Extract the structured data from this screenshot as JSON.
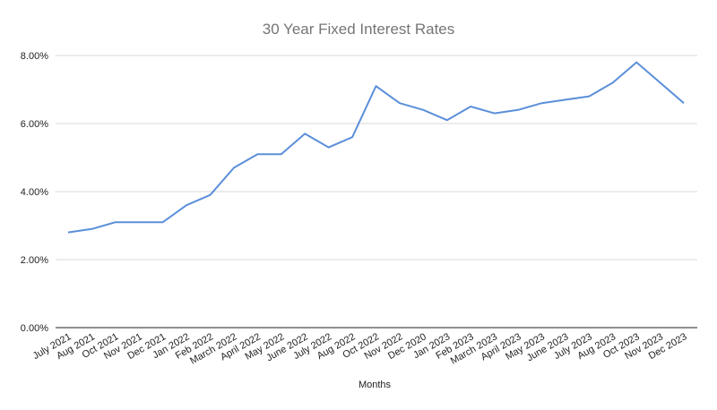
{
  "chart_data": {
    "type": "line",
    "title": "30 Year Fixed Interest Rates",
    "xlabel": "Months",
    "ylabel": "",
    "ylim": [
      0,
      8
    ],
    "yticks": [
      "0.00%",
      "2.00%",
      "4.00%",
      "6.00%",
      "8.00%"
    ],
    "grid": true,
    "legend": "none",
    "categories": [
      "July 2021",
      "Aug 2021",
      "Oct 2021",
      "Nov 2021",
      "Dec 2021",
      "Jan 2022",
      "Feb 2022",
      "March 2022",
      "April 2022",
      "May 2022",
      "June 2022",
      "July 2022",
      "Aug 2022",
      "Oct 2022",
      "Nov 2022",
      "Dec 2020",
      "Jan 2023",
      "Feb 2023",
      "March 2023",
      "April 2023",
      "May 2023",
      "June 2023",
      "July 2023",
      "Aug 2023",
      "Oct 2023",
      "Nov 2023",
      "Dec 2023"
    ],
    "series": [
      {
        "values": [
          2.8,
          2.9,
          3.1,
          3.1,
          3.1,
          3.6,
          3.9,
          4.7,
          5.1,
          5.1,
          5.7,
          5.3,
          5.6,
          7.1,
          6.6,
          6.4,
          6.1,
          6.5,
          6.3,
          6.4,
          6.6,
          6.7,
          6.8,
          7.2,
          7.8,
          7.2,
          6.6
        ],
        "color": "#5b8fd9"
      }
    ],
    "colors": {
      "line": "#5b8fd9",
      "grid": "#d9d9d9",
      "axis": "#222222",
      "title": "#757575"
    }
  }
}
